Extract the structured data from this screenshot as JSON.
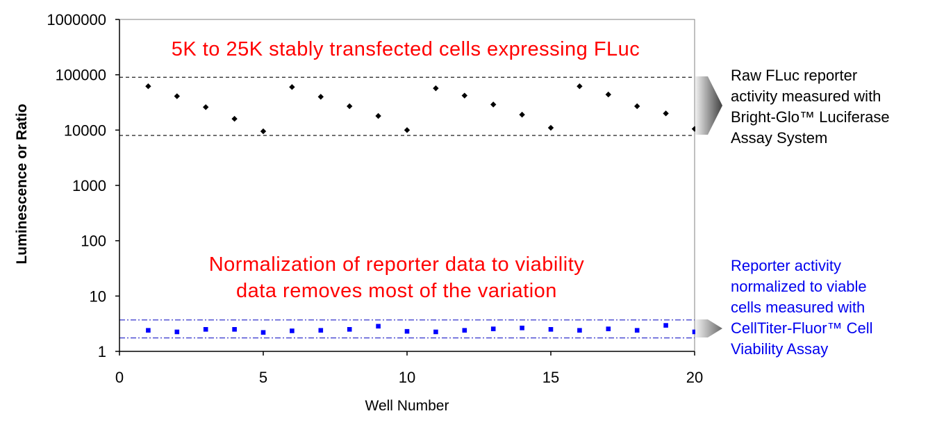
{
  "chart_data": {
    "type": "scatter",
    "xlabel": "Well Number",
    "ylabel": "Luminescence or Ratio",
    "x_ticks": [
      "0",
      "5",
      "10",
      "15",
      "20"
    ],
    "y_ticks": [
      "1",
      "10",
      "100",
      "1000",
      "10000",
      "100000",
      "1000000"
    ],
    "xlim": [
      0,
      20
    ],
    "ylim": [
      1,
      1000000
    ],
    "y_scale": "log",
    "grid": false,
    "series": [
      {
        "color": "#000000",
        "marker": "diamond",
        "x": [
          1,
          2,
          3,
          4,
          5,
          6,
          7,
          8,
          9,
          10,
          11,
          12,
          13,
          14,
          15,
          16,
          17,
          18,
          19,
          20
        ],
        "y": [
          62000,
          41000,
          26000,
          16000,
          9500,
          60000,
          40000,
          27000,
          18000,
          10000,
          57000,
          42000,
          29000,
          19000,
          11000,
          62000,
          44000,
          27000,
          20000,
          10500
        ]
      },
      {
        "color": "#0000ff",
        "marker": "square",
        "x": [
          1,
          2,
          3,
          4,
          5,
          6,
          7,
          8,
          9,
          10,
          11,
          12,
          13,
          14,
          15,
          16,
          17,
          18,
          19,
          20
        ],
        "y": [
          2.4,
          2.25,
          2.5,
          2.5,
          2.2,
          2.35,
          2.4,
          2.5,
          2.85,
          2.3,
          2.25,
          2.4,
          2.55,
          2.65,
          2.5,
          2.4,
          2.55,
          2.4,
          2.95,
          2.25
        ]
      }
    ],
    "bands": [
      {
        "color": "#333333",
        "style": "dashed",
        "y_low": 8000,
        "y_high": 90000
      },
      {
        "color": "#3333cc",
        "style": "dash-dot",
        "y_low": 1.75,
        "y_high": 3.7
      }
    ]
  },
  "annotations": {
    "top": "5K to 25K stably transfected cells expressing FLuc",
    "middle_line1": "Normalization of reporter data to viability",
    "middle_line2": "data removes most of the variation"
  },
  "side_labels": {
    "raw": [
      "Raw FLuc reporter",
      "activity measured with",
      "Bright-Glo™ Luciferase",
      "Assay System"
    ],
    "normalized": [
      "Reporter activity",
      "normalized to viable",
      "cells measured with",
      "CellTiter-Fluor™ Cell",
      "Viability Assay"
    ]
  }
}
